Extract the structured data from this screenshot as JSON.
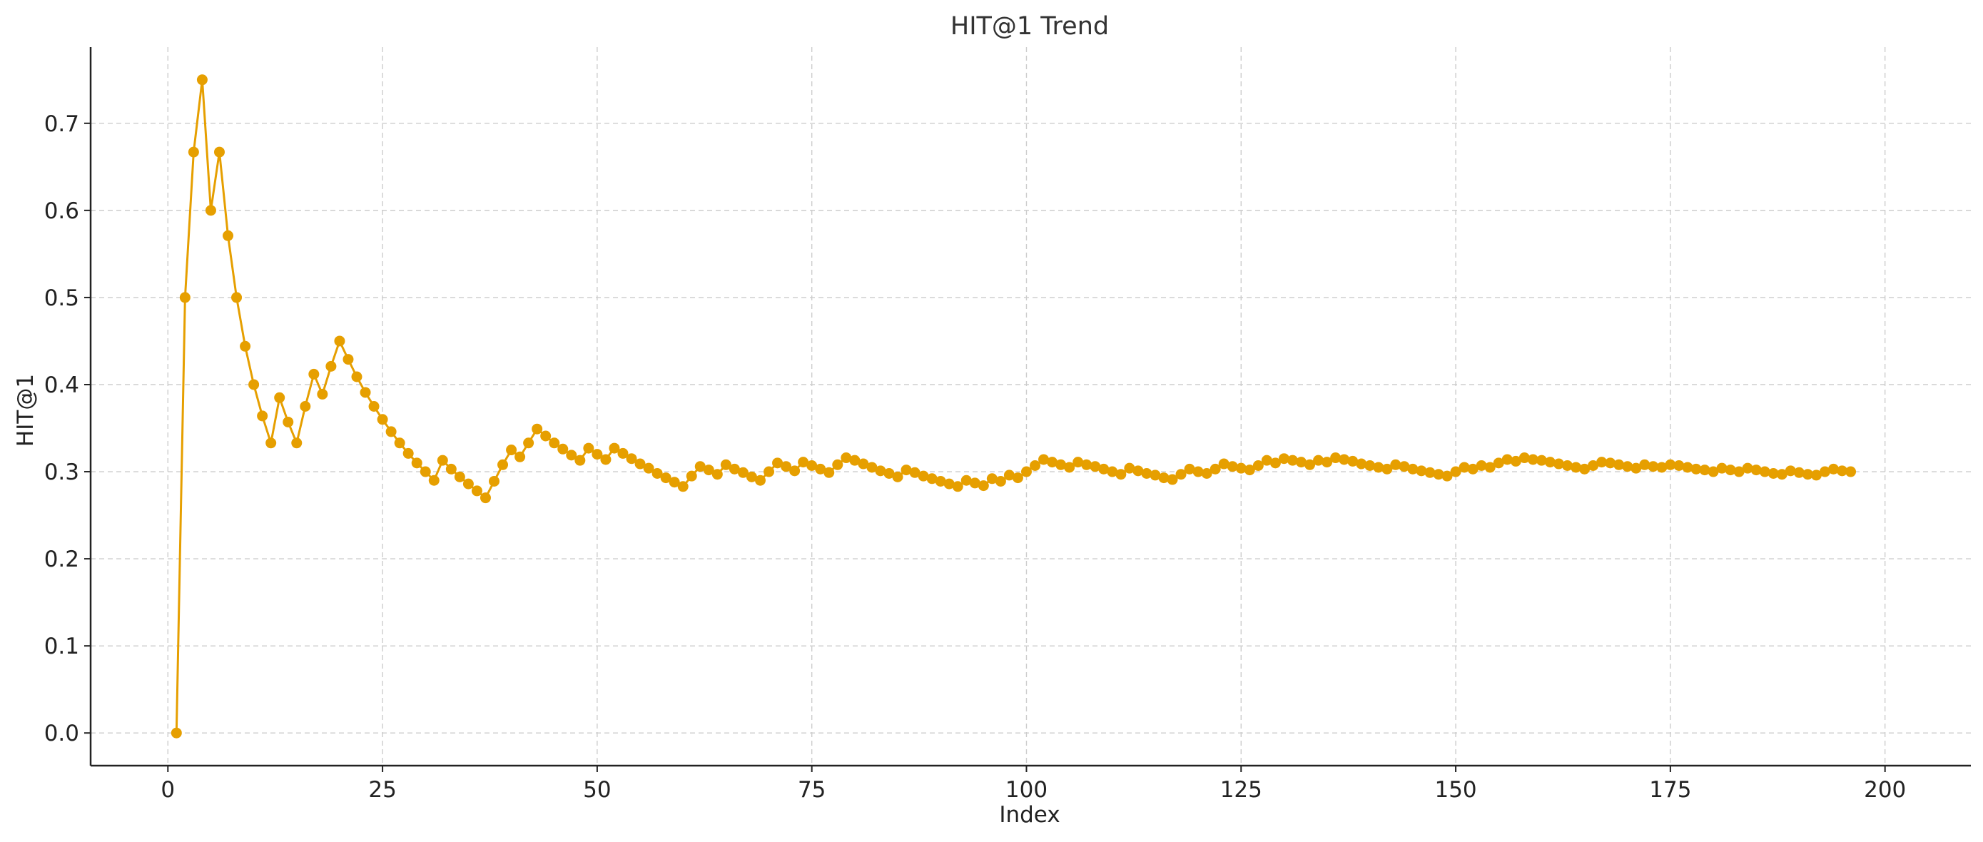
{
  "chart_data": {
    "type": "line",
    "title": "HIT@1 Trend",
    "xlabel": "Index",
    "ylabel": "HIT@1",
    "xlim": [
      -9,
      210
    ],
    "ylim": [
      -0.0375,
      0.7875
    ],
    "xticks": [
      0,
      25,
      50,
      75,
      100,
      125,
      150,
      175,
      200
    ],
    "yticks": [
      0.0,
      0.1,
      0.2,
      0.3,
      0.4,
      0.5,
      0.6,
      0.7
    ],
    "xtick_labels": [
      "0",
      "25",
      "50",
      "75",
      "100",
      "125",
      "150",
      "175",
      "200"
    ],
    "ytick_labels": [
      "0.0",
      "0.1",
      "0.2",
      "0.3",
      "0.4",
      "0.5",
      "0.6",
      "0.7"
    ],
    "grid": true,
    "color": "#E69F00",
    "series": [
      {
        "x_start": 1,
        "values": [
          0.0,
          0.5,
          0.667,
          0.75,
          0.6,
          0.667,
          0.571,
          0.5,
          0.444,
          0.4,
          0.364,
          0.333,
          0.385,
          0.357,
          0.333,
          0.375,
          0.412,
          0.389,
          0.421,
          0.45,
          0.429,
          0.409,
          0.391,
          0.375,
          0.36,
          0.346,
          0.333,
          0.321,
          0.31,
          0.3,
          0.29,
          0.313,
          0.303,
          0.294,
          0.286,
          0.278,
          0.27,
          0.289,
          0.308,
          0.325,
          0.317,
          0.333,
          0.349,
          0.341,
          0.333,
          0.326,
          0.319,
          0.313,
          0.327,
          0.32,
          0.314,
          0.327,
          0.321,
          0.315,
          0.309,
          0.304,
          0.298,
          0.293,
          0.288,
          0.283,
          0.295,
          0.306,
          0.302,
          0.297,
          0.308,
          0.303,
          0.299,
          0.294,
          0.29,
          0.3,
          0.31,
          0.306,
          0.301,
          0.311,
          0.307,
          0.303,
          0.299,
          0.308,
          0.316,
          0.313,
          0.309,
          0.305,
          0.301,
          0.298,
          0.294,
          0.302,
          0.299,
          0.295,
          0.292,
          0.289,
          0.286,
          0.283,
          0.29,
          0.287,
          0.284,
          0.292,
          0.289,
          0.296,
          0.293,
          0.3,
          0.307,
          0.314,
          0.311,
          0.308,
          0.305,
          0.311,
          0.308,
          0.306,
          0.303,
          0.3,
          0.297,
          0.304,
          0.301,
          0.298,
          0.296,
          0.293,
          0.291,
          0.297,
          0.303,
          0.3,
          0.298,
          0.303,
          0.309,
          0.306,
          0.304,
          0.302,
          0.307,
          0.313,
          0.31,
          0.315,
          0.313,
          0.311,
          0.308,
          0.313,
          0.311,
          0.316,
          0.314,
          0.312,
          0.309,
          0.307,
          0.305,
          0.303,
          0.308,
          0.306,
          0.303,
          0.301,
          0.299,
          0.297,
          0.295,
          0.3,
          0.305,
          0.303,
          0.307,
          0.305,
          0.31,
          0.314,
          0.312,
          0.316,
          0.314,
          0.313,
          0.311,
          0.309,
          0.307,
          0.305,
          0.303,
          0.307,
          0.311,
          0.31,
          0.308,
          0.306,
          0.304,
          0.308,
          0.306,
          0.305,
          0.308,
          0.307,
          0.305,
          0.303,
          0.302,
          0.3,
          0.304,
          0.302,
          0.3,
          0.304,
          0.302,
          0.3,
          0.298,
          0.297,
          0.301,
          0.299,
          0.297,
          0.296,
          0.3,
          0.303,
          0.301,
          0.3
        ]
      }
    ]
  }
}
